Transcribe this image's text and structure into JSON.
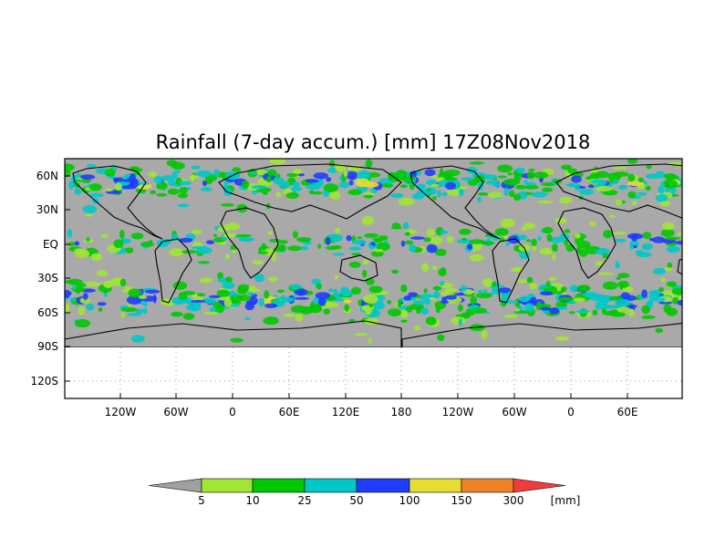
{
  "title": "Rainfall (7-day accum.) [mm] 17Z08Nov2018",
  "y_axis_labels": [
    "60N",
    "30N",
    "EQ",
    "30S",
    "60S",
    "90S",
    "120S"
  ],
  "x_axis_labels": [
    "120W",
    "60W",
    "0",
    "60E",
    "120E",
    "180",
    "120W",
    "60W",
    "0",
    "60E"
  ],
  "colorbar": {
    "unit": "[mm]",
    "thresholds": [
      "5",
      "10",
      "25",
      "50",
      "100",
      "150",
      "300"
    ],
    "colors": [
      "#a0a0a0",
      "#a0e632",
      "#00c800",
      "#00c8c8",
      "#1e3cff",
      "#e6dc32",
      "#f08228",
      "#f03c3c"
    ]
  },
  "map_colors": {
    "ocean_dry": "#a9a9a9",
    "coastline": "#000000",
    "background": "#ffffff"
  }
}
